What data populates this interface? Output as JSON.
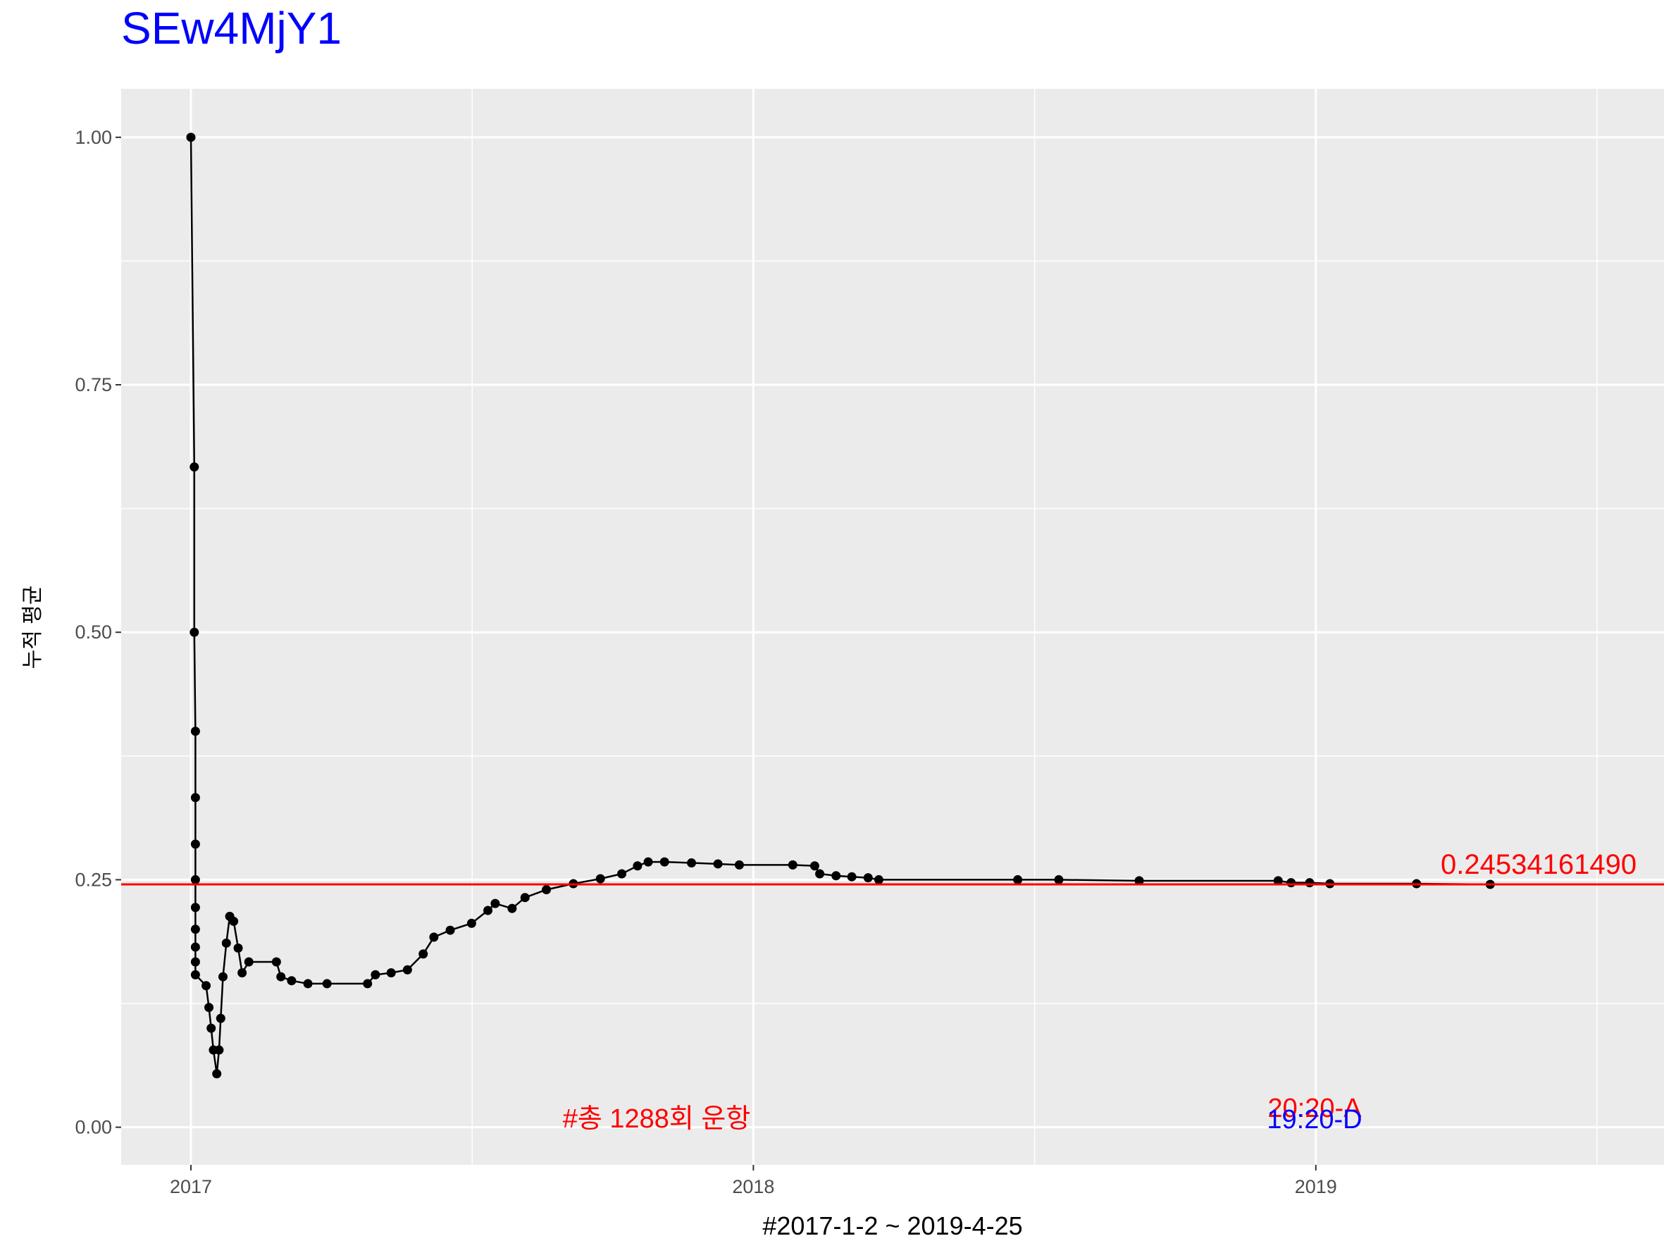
{
  "chart_data": {
    "type": "line",
    "title": "SEw4MjY1",
    "x_label": "#2017-1-2 ~ 2019-4-25",
    "y_label": "누적 평균",
    "x": [
      2017.0,
      2017.006,
      2017.006,
      2017.008,
      2017.008,
      2017.008,
      2017.008,
      2017.008,
      2017.008,
      2017.008,
      2017.008,
      2017.008,
      2017.027,
      2017.032,
      2017.036,
      2017.04,
      2017.046,
      2017.05,
      2017.053,
      2017.057,
      2017.063,
      2017.069,
      2017.076,
      2017.084,
      2017.091,
      2017.103,
      2017.152,
      2017.16,
      2017.179,
      2017.208,
      2017.242,
      2017.314,
      2017.328,
      2017.356,
      2017.385,
      2017.413,
      2017.432,
      2017.461,
      2017.499,
      2017.528,
      2017.541,
      2017.571,
      2017.594,
      2017.632,
      2017.68,
      2017.728,
      2017.766,
      2017.794,
      2017.813,
      2017.842,
      2017.89,
      2017.937,
      2017.975,
      2018.07,
      2018.109,
      2018.118,
      2018.147,
      2018.175,
      2018.204,
      2018.223,
      2018.47,
      2018.543,
      2018.686,
      2018.933,
      2018.956,
      2018.989,
      2019.025,
      2019.179,
      2019.31
    ],
    "values": [
      1.0,
      0.667,
      0.5,
      0.4,
      0.333,
      0.286,
      0.25,
      0.222,
      0.2,
      0.182,
      0.167,
      0.154,
      0.143,
      0.121,
      0.1,
      0.078,
      0.054,
      0.078,
      0.11,
      0.152,
      0.186,
      0.213,
      0.208,
      0.181,
      0.156,
      0.167,
      0.167,
      0.152,
      0.148,
      0.145,
      0.145,
      0.145,
      0.154,
      0.156,
      0.159,
      0.175,
      0.192,
      0.199,
      0.206,
      0.219,
      0.226,
      0.221,
      0.232,
      0.24,
      0.246,
      0.251,
      0.256,
      0.264,
      0.268,
      0.268,
      0.267,
      0.266,
      0.265,
      0.265,
      0.264,
      0.256,
      0.254,
      0.253,
      0.252,
      0.25,
      0.25,
      0.25,
      0.249,
      0.249,
      0.247,
      0.247,
      0.246,
      0.246,
      0.2453
    ],
    "color": "#000000",
    "xlim": [
      2016.876,
      2019.619
    ],
    "ylim": [
      -0.038,
      1.049
    ],
    "xticks": [
      2017,
      2018,
      2019
    ],
    "yticks": [
      {
        "value": 0,
        "label": "0.00"
      },
      {
        "value": 0.25,
        "label": "0.25"
      },
      {
        "value": 0.5,
        "label": "0.50"
      },
      {
        "value": 0.75,
        "label": "0.75"
      },
      {
        "value": 1,
        "label": "1.00"
      }
    ],
    "x_minor_ticks": [
      2017.5,
      2018.5,
      2019.5
    ],
    "y_minor_ticks": [
      0.125,
      0.375,
      0.625,
      0.875
    ],
    "grid": true,
    "hline": {
      "value": 0.2453416149,
      "label": "0.24534161490",
      "color": "#ff0000"
    },
    "annotations": [
      {
        "text": "#총 1288회 운항",
        "color": "#ff0000"
      },
      {
        "text": "20:20-A",
        "color": "#ff0000"
      },
      {
        "text": "19:20-D",
        "color": "#0000ff"
      }
    ]
  }
}
